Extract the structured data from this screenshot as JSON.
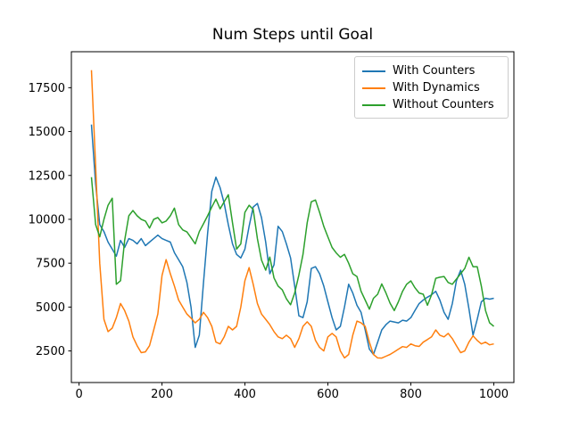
{
  "figure": {
    "background": "#ffffff"
  },
  "chart_data": {
    "type": "line",
    "title": "Num Steps until Goal",
    "xlabel": "",
    "ylabel": "",
    "xlim": [
      -18.5,
      1048.5
    ],
    "ylim": [
      700,
      19550
    ],
    "x_ticks": [
      0,
      200,
      400,
      600,
      800,
      1000
    ],
    "y_ticks": [
      2500,
      5000,
      7500,
      10000,
      12500,
      15000,
      17500
    ],
    "grid": false,
    "legend_position": "upper right",
    "x_start": 30,
    "x_step": 10,
    "series": [
      {
        "name": "With Counters",
        "color": "#1f77b4",
        "values": [
          15400,
          12000,
          9700,
          9300,
          8700,
          8300,
          7900,
          8800,
          8400,
          8900,
          8800,
          8600,
          8900,
          8500,
          8700,
          8900,
          9100,
          8900,
          8800,
          8700,
          8100,
          7700,
          7300,
          6400,
          5000,
          2700,
          3400,
          6400,
          9200,
          11600,
          12400,
          11800,
          10900,
          9700,
          8600,
          8000,
          7800,
          8300,
          9600,
          10700,
          10900,
          10100,
          8700,
          6900,
          7400,
          9600,
          9300,
          8600,
          7800,
          6200,
          4500,
          4400,
          5300,
          7200,
          7300,
          6900,
          6200,
          5300,
          4400,
          3700,
          3900,
          5000,
          6300,
          5800,
          5100,
          4700,
          3700,
          2600,
          2300,
          3000,
          3700,
          4000,
          4200,
          4150,
          4100,
          4250,
          4200,
          4400,
          4800,
          5200,
          5400,
          5560,
          5700,
          5900,
          5400,
          4700,
          4300,
          5200,
          6500,
          7100,
          6300,
          4900,
          3400,
          4300,
          5300,
          5500,
          5450,
          5500
        ]
      },
      {
        "name": "With Dynamics",
        "color": "#ff7f0e",
        "values": [
          18500,
          13000,
          7500,
          4300,
          3600,
          3800,
          4400,
          5200,
          4800,
          4200,
          3300,
          2800,
          2400,
          2450,
          2800,
          3700,
          4600,
          6800,
          7700,
          6900,
          6200,
          5400,
          5000,
          4600,
          4370,
          4100,
          4300,
          4700,
          4400,
          3900,
          3000,
          2900,
          3300,
          3900,
          3700,
          3900,
          5000,
          6500,
          7250,
          6300,
          5200,
          4600,
          4300,
          4000,
          3600,
          3300,
          3200,
          3400,
          3200,
          2700,
          3200,
          3900,
          4160,
          3900,
          3100,
          2700,
          2500,
          3300,
          3500,
          3300,
          2500,
          2100,
          2300,
          3400,
          4200,
          4100,
          3900,
          3000,
          2300,
          2100,
          2090,
          2200,
          2300,
          2450,
          2600,
          2750,
          2700,
          2900,
          2800,
          2760,
          3000,
          3150,
          3300,
          3700,
          3400,
          3300,
          3500,
          3200,
          2800,
          2400,
          2500,
          3000,
          3360,
          3100,
          2900,
          3000,
          2850,
          2900
        ]
      },
      {
        "name": "Without Counters",
        "color": "#2ca02c",
        "values": [
          12400,
          9700,
          9000,
          10000,
          10800,
          11200,
          6300,
          6500,
          8800,
          10200,
          10500,
          10200,
          10000,
          9900,
          9500,
          10000,
          10100,
          9800,
          9900,
          10200,
          10640,
          9700,
          9400,
          9280,
          8950,
          8600,
          9300,
          9750,
          10200,
          10700,
          11150,
          10600,
          11000,
          11400,
          9800,
          8300,
          8600,
          10400,
          10800,
          10560,
          8900,
          7680,
          7100,
          7850,
          6660,
          6200,
          5980,
          5470,
          5130,
          5800,
          6830,
          8000,
          9800,
          11000,
          11100,
          10400,
          9600,
          9000,
          8400,
          8090,
          7840,
          8000,
          7500,
          6900,
          6740,
          5900,
          5400,
          4880,
          5500,
          5730,
          6320,
          5800,
          5220,
          4800,
          5300,
          5900,
          6300,
          6490,
          6100,
          5800,
          5730,
          5100,
          5700,
          6640,
          6700,
          6740,
          6400,
          6300,
          6600,
          6900,
          7200,
          7840,
          7300,
          7300,
          6200,
          4800,
          4100,
          3900
        ]
      }
    ]
  }
}
